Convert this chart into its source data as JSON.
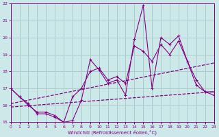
{
  "xlabel": "Windchill (Refroidissement éolien,°C)",
  "background_color": "#cce8e8",
  "grid_color": "#aacccc",
  "line_color": "#800080",
  "x_min": 0,
  "x_max": 23,
  "y_min": 15,
  "y_max": 22,
  "series1": [
    17.0,
    16.5,
    16.1,
    15.5,
    15.5,
    15.3,
    15.0,
    15.1,
    16.3,
    18.7,
    18.1,
    17.3,
    17.5,
    16.6,
    19.9,
    21.9,
    17.0,
    20.0,
    19.6,
    20.1,
    18.6,
    17.2,
    16.8,
    16.6
  ],
  "series2": [
    17.0,
    16.5,
    16.0,
    15.6,
    15.6,
    15.4,
    15.0,
    16.5,
    17.0,
    18.0,
    18.2,
    17.5,
    17.7,
    17.3,
    19.5,
    19.2,
    18.6,
    19.6,
    19.0,
    19.8,
    18.6,
    17.5,
    16.8,
    16.8
  ],
  "trend1_x": [
    0,
    23
  ],
  "trend1_y": [
    16.1,
    18.5
  ],
  "trend2_x": [
    0,
    23
  ],
  "trend2_y": [
    15.9,
    16.8
  ],
  "xticks": [
    0,
    1,
    2,
    3,
    4,
    5,
    6,
    7,
    8,
    9,
    10,
    11,
    12,
    13,
    14,
    15,
    16,
    17,
    18,
    19,
    20,
    21,
    22,
    23
  ],
  "yticks": [
    15,
    16,
    17,
    18,
    19,
    20,
    21,
    22
  ]
}
